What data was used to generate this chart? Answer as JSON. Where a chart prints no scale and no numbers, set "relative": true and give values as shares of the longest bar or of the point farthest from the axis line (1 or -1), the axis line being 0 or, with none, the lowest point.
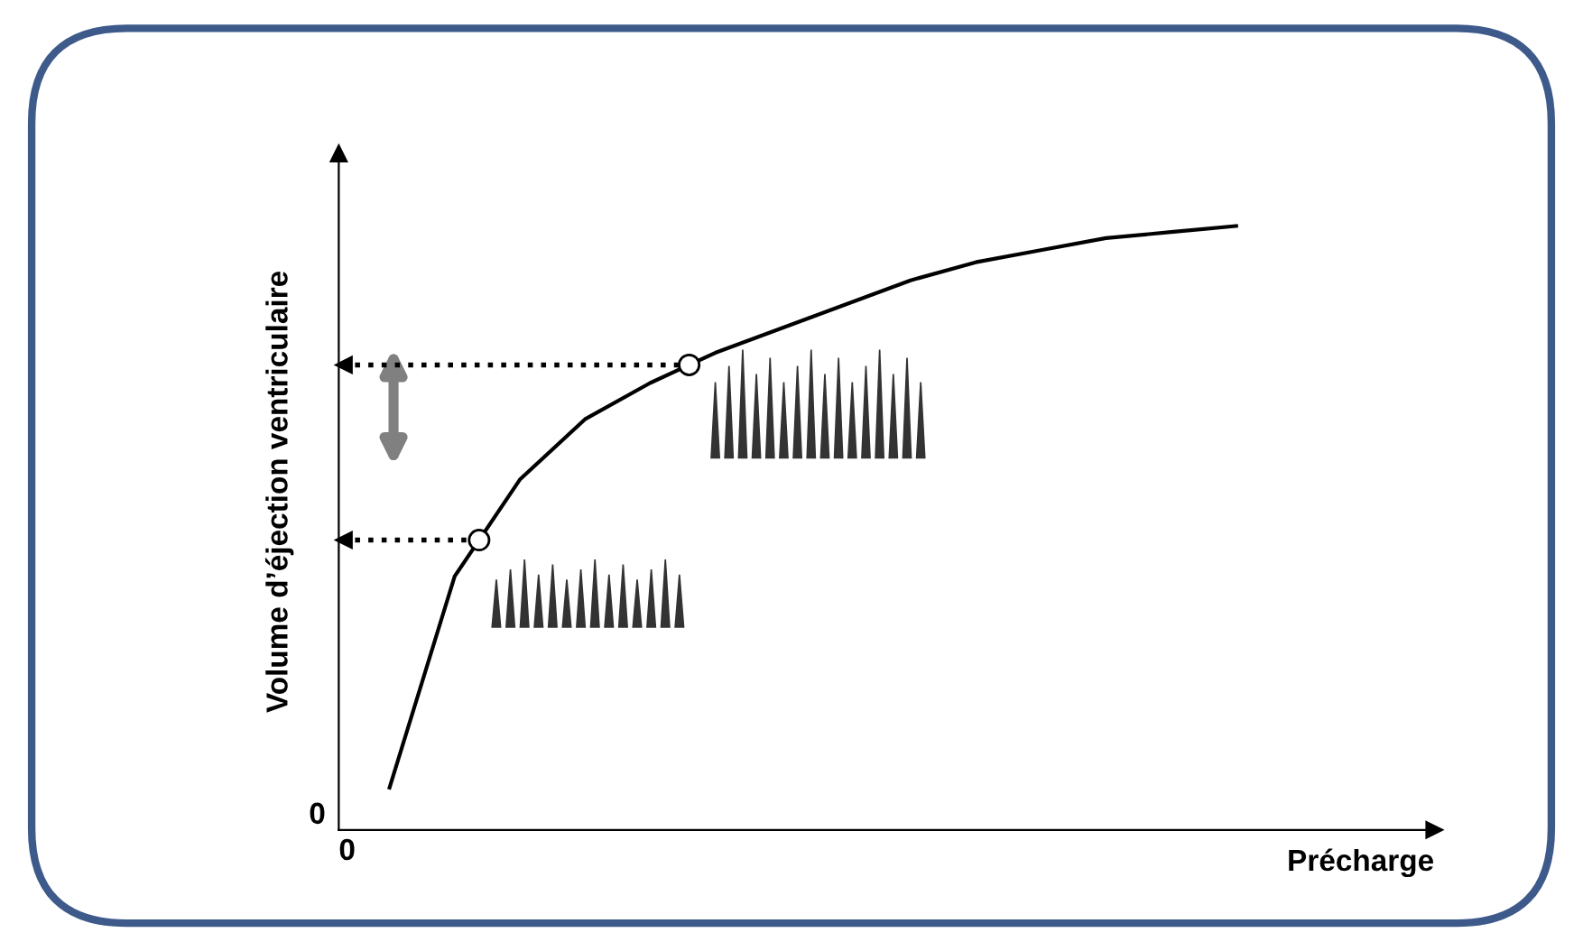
{
  "chart_data": {
    "type": "line",
    "relative": true,
    "xlabel": "Précharge",
    "ylabel": "Volume d’éjection ventriculaire",
    "annotations": [
      "0",
      "0"
    ],
    "categories": [
      null,
      null,
      null,
      null,
      null,
      null,
      null,
      null,
      null,
      null,
      null,
      null,
      null,
      null
    ],
    "series": [
      {
        "color": "#000000",
        "line_style": "solid",
        "values": [
          0.07,
          0.42,
          0.58,
          0.68,
          0.74,
          0.79,
          0.83,
          0.87,
          0.91,
          0.94,
          0.96,
          0.98,
          0.99,
          1.0
        ]
      }
    ],
    "ref_lines": [
      {
        "axis": "y",
        "value": 0.48,
        "label": null,
        "color": "#000000",
        "line_style": "dotted"
      },
      {
        "axis": "y",
        "value": 0.77,
        "label": null,
        "color": "#000000",
        "line_style": "dotted"
      }
    ]
  }
}
